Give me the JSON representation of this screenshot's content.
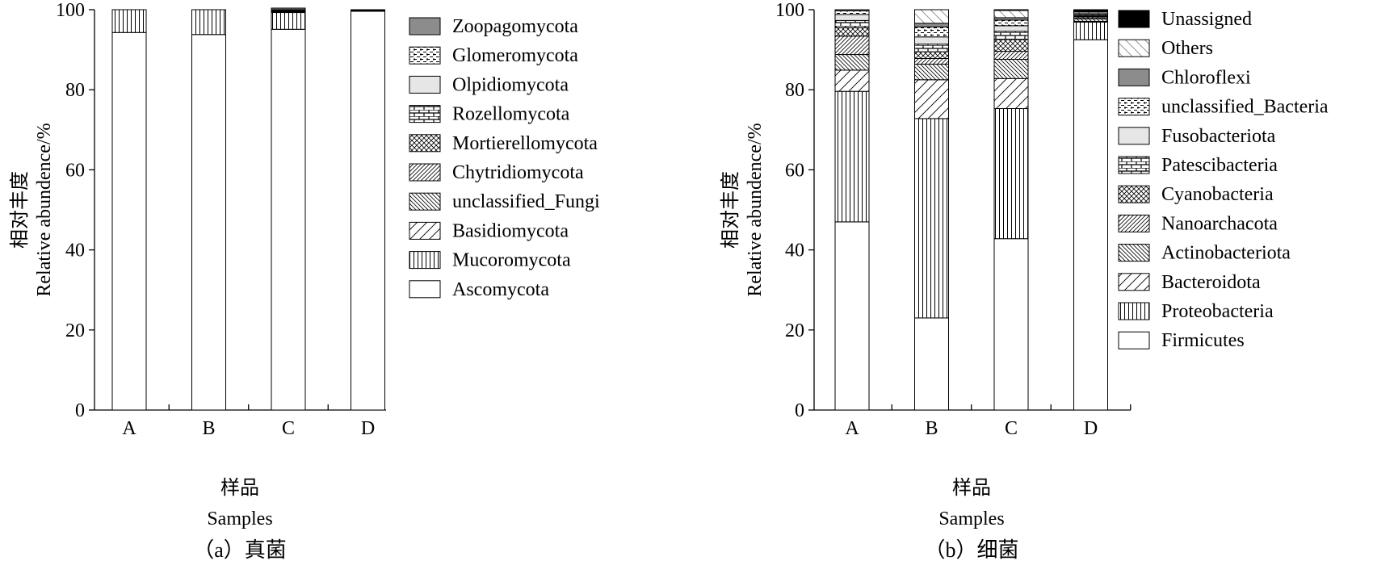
{
  "chart_data": [
    {
      "type": "bar",
      "stacked": true,
      "panel_label": "（a）真菌",
      "xlabel_cn": "样品",
      "xlabel_en": "Samples",
      "ylabel_cn": "相对丰度",
      "ylabel_en": "Relative abundence/%",
      "ylim": [
        0,
        100
      ],
      "yticks": [
        0,
        20,
        40,
        60,
        80,
        100
      ],
      "categories": [
        "A",
        "B",
        "C",
        "D"
      ],
      "legend_position": "right",
      "series": [
        {
          "name": "Ascomycota",
          "pattern": "none",
          "values": [
            94.3,
            93.8,
            95.1,
            99.6
          ]
        },
        {
          "name": "Mucoromycota",
          "pattern": "vlines",
          "values": [
            5.7,
            6.2,
            4.2,
            0.2
          ]
        },
        {
          "name": "Basidiomycota",
          "pattern": "diag-r",
          "values": [
            0,
            0,
            0.1,
            0.05
          ]
        },
        {
          "name": "unclassified_Fungi",
          "pattern": "diag-l-dense",
          "values": [
            0,
            0,
            0.1,
            0.05
          ]
        },
        {
          "name": "Chytridiomycota",
          "pattern": "diag-r-dense",
          "values": [
            0,
            0,
            0.1,
            0.03
          ]
        },
        {
          "name": "Mortierellomycota",
          "pattern": "crosshatch",
          "values": [
            0,
            0,
            0.1,
            0.02
          ]
        },
        {
          "name": "Rozellomycota",
          "pattern": "brick",
          "values": [
            0,
            0,
            0.1,
            0.02
          ]
        },
        {
          "name": "Olpidiomycota",
          "pattern": "lightgray",
          "values": [
            0,
            0,
            0.1,
            0.01
          ]
        },
        {
          "name": "Glomeromycota",
          "pattern": "dashed",
          "values": [
            0,
            0,
            0.1,
            0.01
          ]
        },
        {
          "name": "Zoopagomycota",
          "pattern": "gray",
          "values": [
            0,
            0,
            0.4,
            0.01
          ]
        }
      ]
    },
    {
      "type": "bar",
      "stacked": true,
      "panel_label": "（b）细菌",
      "xlabel_cn": "样品",
      "xlabel_en": "Samples",
      "ylabel_cn": "相对丰度",
      "ylabel_en": "Relative abundence/%",
      "ylim": [
        0,
        100
      ],
      "yticks": [
        0,
        20,
        40,
        60,
        80,
        100
      ],
      "categories": [
        "A",
        "B",
        "C",
        "D"
      ],
      "legend_position": "right",
      "series": [
        {
          "name": "Firmicutes",
          "pattern": "none",
          "values": [
            47.0,
            23.0,
            42.8,
            92.5
          ]
        },
        {
          "name": "Proteobacteria",
          "pattern": "vlines",
          "values": [
            32.6,
            49.8,
            32.5,
            4.4
          ]
        },
        {
          "name": "Bacteroidota",
          "pattern": "diag-r",
          "values": [
            5.3,
            9.7,
            7.5,
            0.2
          ]
        },
        {
          "name": "Actinobacteriota",
          "pattern": "diag-l-dense",
          "values": [
            3.9,
            3.9,
            4.8,
            0.6
          ]
        },
        {
          "name": "Nanoarchacota",
          "pattern": "diag-r-dense",
          "values": [
            4.6,
            1.4,
            2.0,
            0.3
          ]
        },
        {
          "name": "Cyanobacteria",
          "pattern": "crosshatch",
          "values": [
            2.1,
            1.7,
            3.0,
            0.3
          ]
        },
        {
          "name": "Patescibacteria",
          "pattern": "brick",
          "values": [
            1.8,
            1.9,
            2.0,
            0.1
          ]
        },
        {
          "name": "Fusobacteriota",
          "pattern": "lightgray",
          "values": [
            1.5,
            1.8,
            1.4,
            0.1
          ]
        },
        {
          "name": "unclassified_Bacteria",
          "pattern": "dashed",
          "values": [
            0.9,
            2.5,
            1.4,
            0.3
          ]
        },
        {
          "name": "Chloroflexi",
          "pattern": "gray",
          "values": [
            0.3,
            0.9,
            0.6,
            0.2
          ]
        },
        {
          "name": "Others",
          "pattern": "diag-l-light",
          "values": [
            0,
            3.4,
            1.8,
            0.4
          ]
        },
        {
          "name": "Unassigned",
          "pattern": "black",
          "values": [
            0,
            0,
            0.2,
            0.6
          ]
        }
      ]
    }
  ]
}
